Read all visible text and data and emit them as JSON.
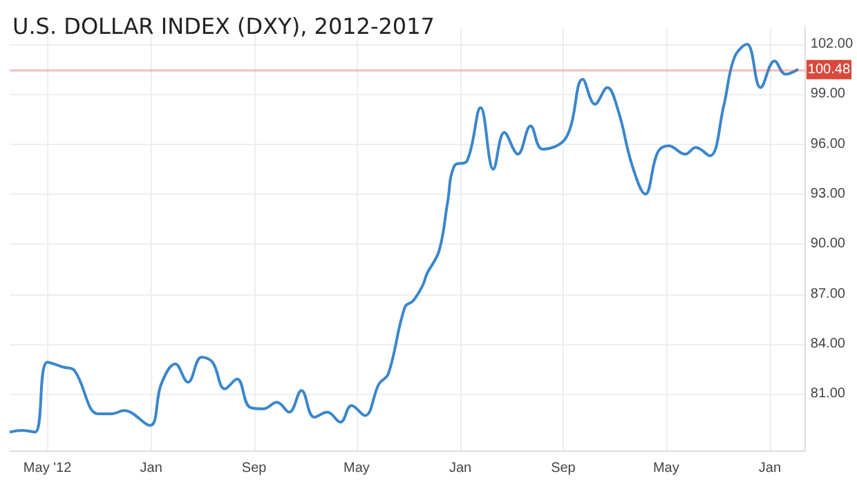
{
  "chart_data": {
    "type": "line",
    "title": "U.S. DOLLAR INDEX (DXY), 2012-2017",
    "x": [
      "2012-02-02",
      "2012-03-03",
      "2012-04-02",
      "2012-05-01",
      "2012-06-09",
      "2012-07-04",
      "2012-08-29",
      "2012-09-30",
      "2012-10-29",
      "2012-12-29",
      "2013-01-25",
      "2013-02-27",
      "2013-03-29",
      "2013-04-30",
      "2013-05-26",
      "2013-06-24",
      "2013-07-23",
      "2013-08-22",
      "2013-09-23",
      "2013-10-25",
      "2013-11-23",
      "2013-12-22",
      "2014-01-21",
      "2014-02-21",
      "2014-03-24",
      "2014-04-19",
      "2014-05-21",
      "2014-06-23",
      "2014-07-15",
      "2014-08-23",
      "2014-09-12",
      "2014-10-04",
      "2014-10-14",
      "2014-11-12",
      "2014-12-02",
      "2014-12-18",
      "2015-01-17",
      "2015-02-18",
      "2015-03-20",
      "2015-04-15",
      "2015-05-17",
      "2015-06-16",
      "2015-07-14",
      "2015-09-08",
      "2015-10-17",
      "2015-11-15",
      "2015-12-14",
      "2016-01-09",
      "2016-02-11",
      "2016-03-13",
      "2016-04-11",
      "2016-05-07",
      "2016-06-15",
      "2016-07-10",
      "2016-08-12",
      "2016-09-14",
      "2016-10-09",
      "2016-11-08",
      "2016-12-10",
      "2017-01-12",
      "2017-02-07",
      "2017-03-09"
    ],
    "series": [
      {
        "color": "#3a86cc",
        "values": [
          78.7,
          78.8,
          78.7,
          82.9,
          82.6,
          82.4,
          79.8,
          79.8,
          80.0,
          79.1,
          81.6,
          82.8,
          81.7,
          83.2,
          82.9,
          81.3,
          81.9,
          80.2,
          80.1,
          80.5,
          79.9,
          81.2,
          79.6,
          79.9,
          79.3,
          80.3,
          79.7,
          81.6,
          82.2,
          86.2,
          86.6,
          87.5,
          88.2,
          89.6,
          92.5,
          94.7,
          95.0,
          98.2,
          94.5,
          96.7,
          95.4,
          97.1,
          95.7,
          96.4,
          99.9,
          98.4,
          99.4,
          98.0,
          94.7,
          93.0,
          95.5,
          95.9,
          95.4,
          95.8,
          95.3,
          98.3,
          101.2,
          102.0,
          99.4,
          101.0,
          100.2,
          100.5
        ]
      }
    ],
    "xlim": [
      "2012-02-02",
      "2017-03-25"
    ],
    "xticks": [
      {
        "value": "2012-05-01",
        "label": "May '12"
      },
      {
        "value": "2013-01-01",
        "label": "Jan"
      },
      {
        "value": "2013-09-01",
        "label": "Sep"
      },
      {
        "value": "2014-05-01",
        "label": "May"
      },
      {
        "value": "2015-01-01",
        "label": "Jan"
      },
      {
        "value": "2015-09-01",
        "label": "Sep"
      },
      {
        "value": "2016-05-01",
        "label": "May"
      },
      {
        "value": "2017-01-01",
        "label": "Jan"
      }
    ],
    "ylim": [
      77.6,
      103
    ],
    "yticks": [
      {
        "value": 81,
        "label": "81.00"
      },
      {
        "value": 84,
        "label": "84.00"
      },
      {
        "value": 87,
        "label": "87.00"
      },
      {
        "value": 90,
        "label": "90.00"
      },
      {
        "value": 93,
        "label": "93.00"
      },
      {
        "value": 96,
        "label": "96.00"
      },
      {
        "value": 99,
        "label": "99.00"
      },
      {
        "value": 102,
        "label": "102.00"
      }
    ],
    "ref_lines": [
      {
        "axis": "y",
        "value": 100.48,
        "label": "100.48",
        "color": "#d9483b"
      }
    ],
    "grid": true,
    "marker": "none",
    "line_style": "solid"
  }
}
